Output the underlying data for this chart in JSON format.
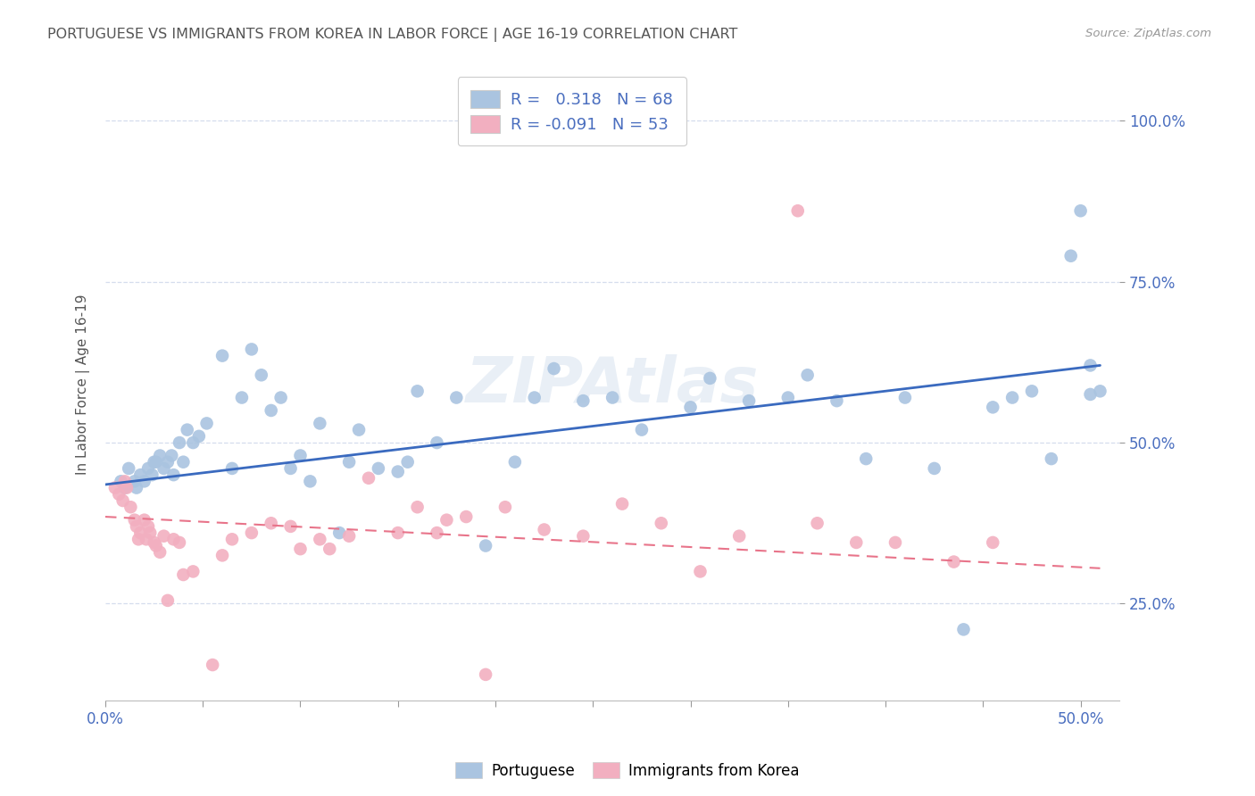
{
  "title": "PORTUGUESE VS IMMIGRANTS FROM KOREA IN LABOR FORCE | AGE 16-19 CORRELATION CHART",
  "source": "Source: ZipAtlas.com",
  "ylabel": "In Labor Force | Age 16-19",
  "y_tick_labels": [
    "25.0%",
    "50.0%",
    "75.0%",
    "100.0%"
  ],
  "y_tick_values": [
    0.25,
    0.5,
    0.75,
    1.0
  ],
  "x_tick_labels": [
    "0.0%",
    "50.0%"
  ],
  "x_tick_positions": [
    0.0,
    0.5
  ],
  "x_minor_ticks": [
    0.05,
    0.1,
    0.15,
    0.2,
    0.25,
    0.3,
    0.35,
    0.4,
    0.45
  ],
  "x_range": [
    0.0,
    0.52
  ],
  "y_range": [
    0.1,
    1.08
  ],
  "blue_r_value": "0.318",
  "blue_n_value": "68",
  "pink_r_value": "-0.091",
  "pink_n_value": "53",
  "blue_color": "#aac4e0",
  "pink_color": "#f2afc0",
  "blue_line_color": "#3a6abf",
  "pink_line_color": "#e8748a",
  "watermark": "ZIPAtlas",
  "blue_scatter_x": [
    0.008,
    0.01,
    0.012,
    0.015,
    0.016,
    0.018,
    0.02,
    0.022,
    0.024,
    0.025,
    0.026,
    0.028,
    0.03,
    0.032,
    0.034,
    0.035,
    0.038,
    0.04,
    0.042,
    0.045,
    0.048,
    0.052,
    0.06,
    0.065,
    0.07,
    0.075,
    0.08,
    0.085,
    0.09,
    0.095,
    0.1,
    0.105,
    0.11,
    0.12,
    0.125,
    0.13,
    0.14,
    0.15,
    0.155,
    0.16,
    0.17,
    0.18,
    0.195,
    0.21,
    0.22,
    0.23,
    0.245,
    0.26,
    0.275,
    0.3,
    0.31,
    0.33,
    0.35,
    0.36,
    0.375,
    0.39,
    0.41,
    0.425,
    0.44,
    0.455,
    0.465,
    0.475,
    0.485,
    0.495,
    0.5,
    0.505,
    0.505,
    0.51
  ],
  "blue_scatter_y": [
    0.44,
    0.43,
    0.46,
    0.44,
    0.43,
    0.45,
    0.44,
    0.46,
    0.45,
    0.47,
    0.47,
    0.48,
    0.46,
    0.47,
    0.48,
    0.45,
    0.5,
    0.47,
    0.52,
    0.5,
    0.51,
    0.53,
    0.635,
    0.46,
    0.57,
    0.645,
    0.605,
    0.55,
    0.57,
    0.46,
    0.48,
    0.44,
    0.53,
    0.36,
    0.47,
    0.52,
    0.46,
    0.455,
    0.47,
    0.58,
    0.5,
    0.57,
    0.34,
    0.47,
    0.57,
    0.615,
    0.565,
    0.57,
    0.52,
    0.555,
    0.6,
    0.565,
    0.57,
    0.605,
    0.565,
    0.475,
    0.57,
    0.46,
    0.21,
    0.555,
    0.57,
    0.58,
    0.475,
    0.79,
    0.86,
    0.575,
    0.62,
    0.58
  ],
  "pink_scatter_x": [
    0.005,
    0.007,
    0.009,
    0.01,
    0.011,
    0.013,
    0.015,
    0.016,
    0.017,
    0.018,
    0.02,
    0.021,
    0.022,
    0.023,
    0.025,
    0.026,
    0.028,
    0.03,
    0.032,
    0.035,
    0.038,
    0.04,
    0.045,
    0.055,
    0.06,
    0.065,
    0.075,
    0.085,
    0.095,
    0.1,
    0.11,
    0.115,
    0.125,
    0.135,
    0.15,
    0.16,
    0.17,
    0.175,
    0.185,
    0.195,
    0.205,
    0.225,
    0.245,
    0.265,
    0.285,
    0.305,
    0.325,
    0.355,
    0.365,
    0.385,
    0.405,
    0.435,
    0.455
  ],
  "pink_scatter_y": [
    0.43,
    0.42,
    0.41,
    0.44,
    0.43,
    0.4,
    0.38,
    0.37,
    0.35,
    0.36,
    0.38,
    0.35,
    0.37,
    0.36,
    0.345,
    0.34,
    0.33,
    0.355,
    0.255,
    0.35,
    0.345,
    0.295,
    0.3,
    0.155,
    0.325,
    0.35,
    0.36,
    0.375,
    0.37,
    0.335,
    0.35,
    0.335,
    0.355,
    0.445,
    0.36,
    0.4,
    0.36,
    0.38,
    0.385,
    0.14,
    0.4,
    0.365,
    0.355,
    0.405,
    0.375,
    0.3,
    0.355,
    0.86,
    0.375,
    0.345,
    0.345,
    0.315,
    0.345
  ],
  "blue_line_x": [
    0.0,
    0.51
  ],
  "blue_line_y": [
    0.435,
    0.62
  ],
  "pink_line_x": [
    0.0,
    0.51
  ],
  "pink_line_y": [
    0.385,
    0.305
  ],
  "background_color": "#ffffff",
  "grid_color": "#d5dded",
  "title_color": "#555555",
  "tick_label_color": "#4a6ebf",
  "label_color": "#555555"
}
